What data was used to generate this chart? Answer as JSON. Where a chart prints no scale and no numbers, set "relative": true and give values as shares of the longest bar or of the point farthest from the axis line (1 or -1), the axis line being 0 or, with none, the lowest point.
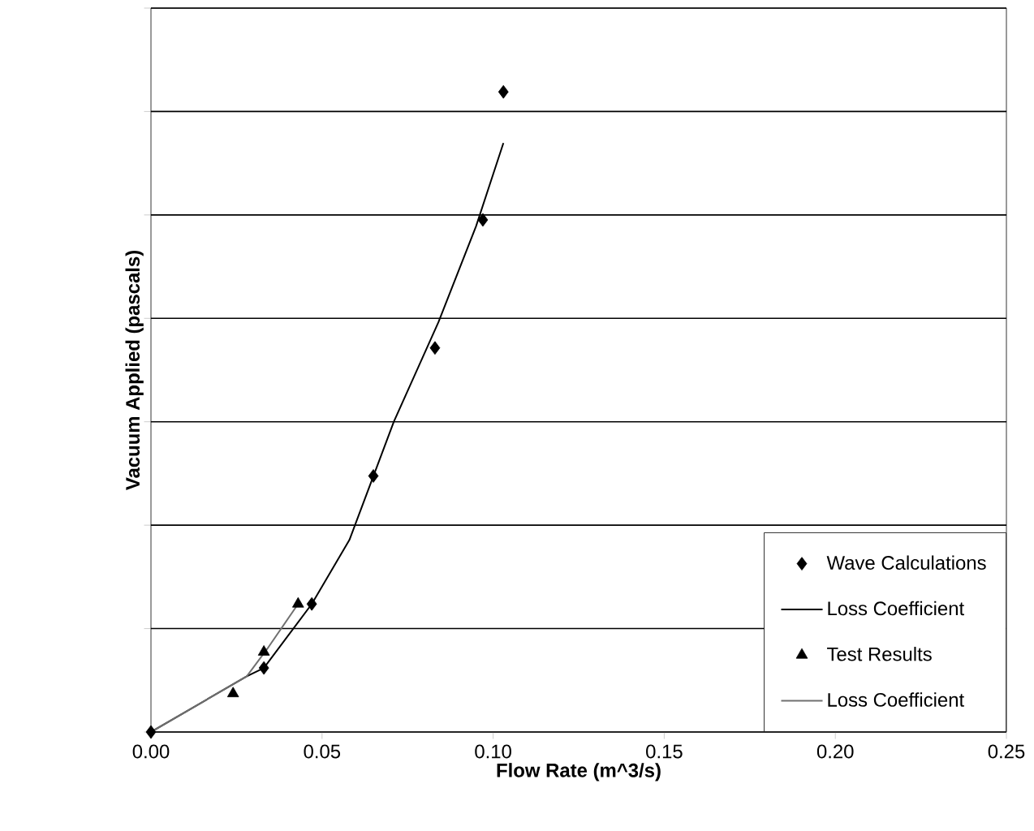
{
  "chart_data": {
    "type": "scatter",
    "relative": true,
    "xlabel": "Flow Rate (m^3/s)",
    "ylabel": "Vacuum Applied (pascals)",
    "xlim": [
      0,
      0.25
    ],
    "xticks": [
      {
        "value": 0,
        "label": "0.00"
      },
      {
        "value": 0.05,
        "label": "0.05"
      },
      {
        "value": 0.1,
        "label": "0.10"
      },
      {
        "value": 0.15,
        "label": "0.15"
      },
      {
        "value": 0.2,
        "label": "0.20"
      },
      {
        "value": 0.25,
        "label": "0.25"
      }
    ],
    "grid": "y",
    "legend": "bottom right",
    "tick_labels": "x",
    "series": [
      {
        "name": "Wave Calculations",
        "marker": "diamond",
        "color": "#000000",
        "x": [
          0,
          0.033,
          0.047,
          0.065,
          0.083,
          0.097,
          0.103
        ],
        "values": [
          0,
          0.1,
          0.2,
          0.4,
          0.6,
          0.8,
          1
        ]
      },
      {
        "name": "Loss Coefficient",
        "type": "line",
        "marker": "none",
        "color": "#000000",
        "x": [
          0,
          0.028,
          0.033,
          0.047,
          0.058,
          0.071,
          0.084,
          0.095,
          0.103
        ],
        "values": [
          0,
          0.087,
          0.1,
          0.2,
          0.3,
          0.485,
          0.64,
          0.79,
          0.92
        ]
      },
      {
        "name": "Test Results",
        "marker": "triangle",
        "color": "#000000",
        "x": [
          0.024,
          0.033,
          0.043
        ],
        "values": [
          0.06,
          0.125,
          0.2
        ]
      },
      {
        "name": "Loss Coefficient",
        "type": "line",
        "marker": "none",
        "color": "#707070",
        "x": [
          0,
          0.028,
          0.034,
          0.043
        ],
        "values": [
          0,
          0.087,
          0.13,
          0.2
        ]
      }
    ]
  }
}
